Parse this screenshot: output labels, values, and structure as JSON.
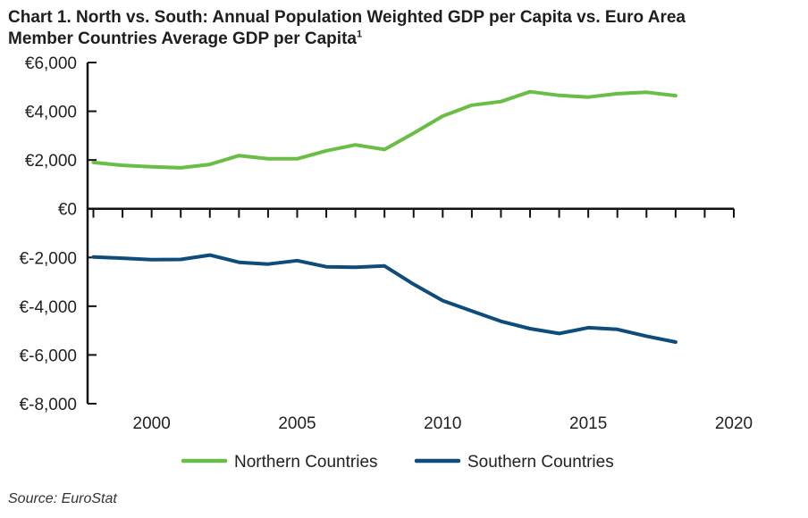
{
  "chart_data": {
    "type": "line",
    "title_line1": "Chart 1. North vs. South: Annual Population Weighted GDP per Capita vs. Euro Area",
    "title_line2": "Member Countries Average GDP per Capita",
    "title_footnote": "1",
    "x": [
      1998,
      1999,
      2000,
      2001,
      2002,
      2003,
      2004,
      2005,
      2006,
      2007,
      2008,
      2009,
      2010,
      2011,
      2012,
      2013,
      2014,
      2015,
      2016,
      2017,
      2018
    ],
    "series": [
      {
        "name": "Northern Countries",
        "color": "#6abd45",
        "values": [
          1900,
          1780,
          1720,
          1680,
          1820,
          2180,
          2050,
          2050,
          2380,
          2620,
          2430,
          3100,
          3800,
          4250,
          4400,
          4800,
          4650,
          4580,
          4720,
          4780,
          4640
        ]
      },
      {
        "name": "Southern Countries",
        "color": "#0e4c7c",
        "values": [
          -1980,
          -2030,
          -2090,
          -2080,
          -1900,
          -2200,
          -2270,
          -2130,
          -2380,
          -2400,
          -2350,
          -3100,
          -3770,
          -4200,
          -4620,
          -4920,
          -5120,
          -4880,
          -4950,
          -5230,
          -5470
        ]
      }
    ],
    "ylim": [
      -8000,
      6000
    ],
    "xlim": [
      1997.8,
      2020
    ],
    "y_ticks": [
      {
        "value": 6000,
        "label": "€6,000"
      },
      {
        "value": 4000,
        "label": "€4,000"
      },
      {
        "value": 2000,
        "label": "€2,000"
      },
      {
        "value": 0,
        "label": "€0"
      },
      {
        "value": -2000,
        "label": "€-2,000"
      },
      {
        "value": -4000,
        "label": "€-4,000"
      },
      {
        "value": -6000,
        "label": "€-6,000"
      },
      {
        "value": -8000,
        "label": "€-8,000"
      }
    ],
    "x_ticks": [
      {
        "value": 2000,
        "label": "2000"
      },
      {
        "value": 2005,
        "label": "2005"
      },
      {
        "value": 2010,
        "label": "2010"
      },
      {
        "value": 2015,
        "label": "2015"
      },
      {
        "value": 2020,
        "label": "2020"
      }
    ],
    "legend_position": "bottom-center",
    "source": "Source: EuroStat"
  }
}
